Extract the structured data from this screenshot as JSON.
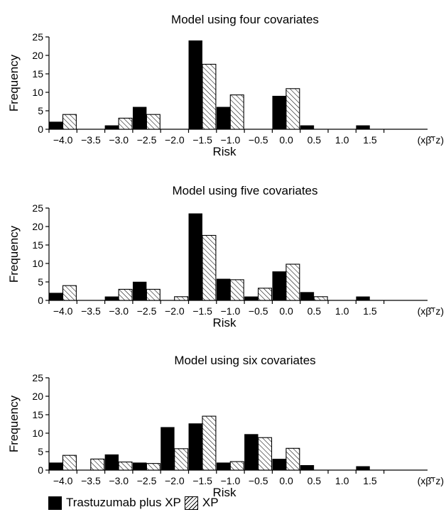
{
  "legend": {
    "series1_label": "Trastuzumab plus XP",
    "series2_label": "XP"
  },
  "chart_data": [
    {
      "type": "bar",
      "title": "Model using four covariates",
      "xlabel": "Risk",
      "x_unit": "(xβ̂ᵀz)",
      "ylabel": "Frequency",
      "ylim": [
        0,
        25
      ],
      "yticks": [
        0,
        5,
        10,
        15,
        20,
        25
      ],
      "categories": [
        "−4.0",
        "−3.5",
        "−3.0",
        "−2.5",
        "−2.0",
        "−1.5",
        "−1.0",
        "−0.5",
        "0.0",
        "0.5",
        "1.0",
        "1.5"
      ],
      "series": [
        {
          "name": "Trastuzumab plus XP",
          "values": [
            2,
            0,
            1,
            6,
            0,
            24,
            6,
            0,
            9,
            1,
            0,
            1
          ]
        },
        {
          "name": "XP",
          "values": [
            4,
            0,
            3,
            4,
            0,
            17.6,
            9.3,
            0,
            11,
            0,
            0,
            0
          ]
        }
      ]
    },
    {
      "type": "bar",
      "title": "Model using five covariates",
      "xlabel": "Risk",
      "x_unit": "(xβ̂ᵀz)",
      "ylabel": "Frequency",
      "ylim": [
        0,
        25
      ],
      "yticks": [
        0,
        5,
        10,
        15,
        20,
        25
      ],
      "categories": [
        "−4.0",
        "−3.5",
        "−3.0",
        "−2.5",
        "−2.0",
        "−1.5",
        "−1.0",
        "−0.5",
        "0.0",
        "0.5",
        "1.0",
        "1.5"
      ],
      "series": [
        {
          "name": "Trastuzumab plus XP",
          "values": [
            2,
            0,
            1,
            5,
            0,
            23.5,
            5.8,
            1,
            7.8,
            2.2,
            0,
            1
          ]
        },
        {
          "name": "XP",
          "values": [
            4,
            0,
            3,
            3,
            1,
            17.6,
            5.6,
            3.3,
            9.8,
            1,
            0,
            0
          ]
        }
      ]
    },
    {
      "type": "bar",
      "title": "Model using six covariates",
      "xlabel": "Risk",
      "x_unit": "(xβ̂ᵀz)",
      "ylabel": "Frequency",
      "ylim": [
        0,
        25
      ],
      "yticks": [
        0,
        5,
        10,
        15,
        20,
        25
      ],
      "categories": [
        "−4.0",
        "−3.5",
        "−3.0",
        "−2.5",
        "−2.0",
        "−1.5",
        "−1.0",
        "−0.5",
        "0.0",
        "0.5",
        "1.0",
        "1.5"
      ],
      "series": [
        {
          "name": "Trastuzumab plus XP",
          "values": [
            2,
            0,
            4.2,
            2,
            11.6,
            12.6,
            2,
            9.7,
            3,
            1.3,
            0,
            1
          ]
        },
        {
          "name": "XP",
          "values": [
            4,
            3,
            2.2,
            1.8,
            5.8,
            14.6,
            2.3,
            8.8,
            5.9,
            0,
            0,
            0
          ]
        }
      ]
    }
  ]
}
